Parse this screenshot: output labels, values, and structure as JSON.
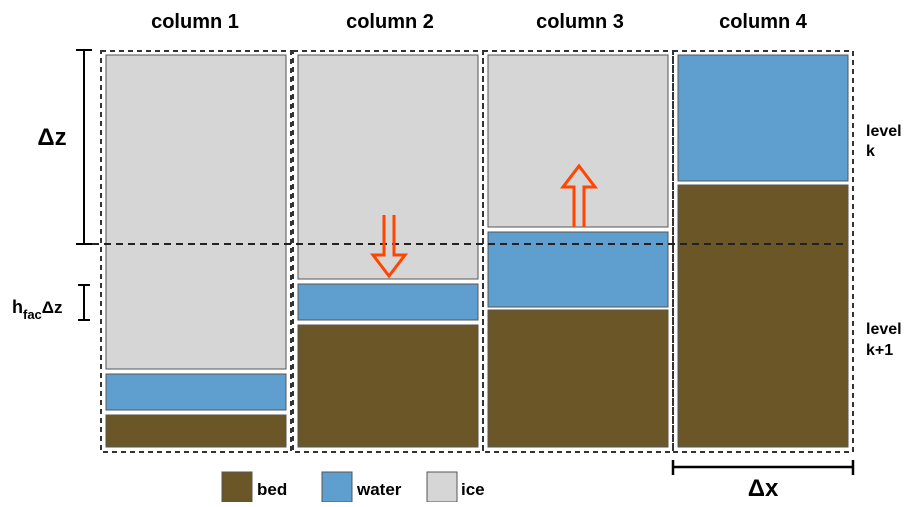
{
  "columns": [
    {
      "title": "column 1"
    },
    {
      "title": "column 2"
    },
    {
      "title": "column 3"
    },
    {
      "title": "column 4"
    }
  ],
  "annotations": {
    "delta_z": "Δz",
    "hfac_main": "h",
    "hfac_sub": "fac",
    "hfac_tail": "Δz",
    "delta_x": "Δx"
  },
  "levels": {
    "k_line1": "level",
    "k_line2": "k",
    "k1_line1": "level",
    "k1_line2": "k+1"
  },
  "legend": {
    "bed": {
      "label": "bed",
      "color": "#6b5628"
    },
    "water": {
      "label": "water",
      "color": "#5f9fd0"
    },
    "ice": {
      "label": "ice",
      "color": "#d6d6d6"
    }
  },
  "colors": {
    "bed": "#6b5628",
    "water": "#5f9fd0",
    "ice": "#d6d6d6",
    "arrow": "#ff4500"
  }
}
